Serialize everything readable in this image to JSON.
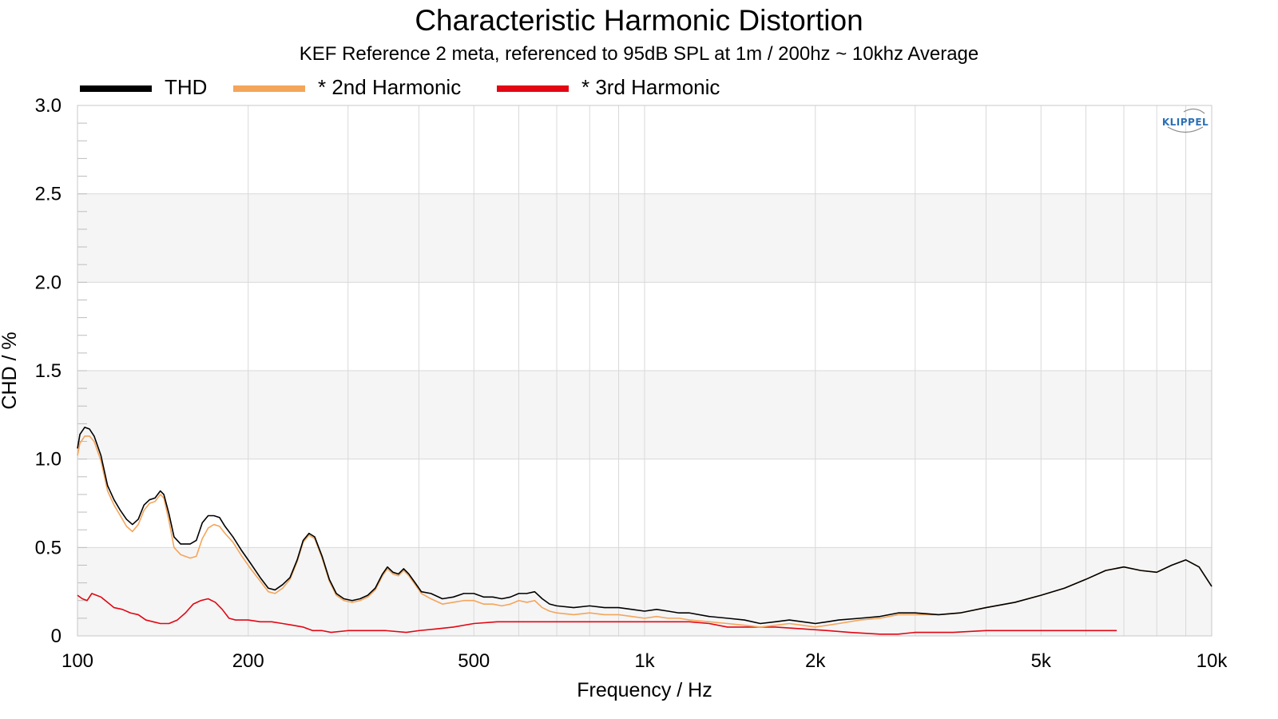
{
  "colors": {
    "thd": "#000000",
    "h2": "#f4a55a",
    "h3": "#e30613",
    "grid": "#d9d9d9",
    "band": "#f5f5f5",
    "brand": "#2b6fb5"
  },
  "brand_logo_text": "KLIPPEL",
  "chart_data": {
    "type": "line",
    "title": "Characteristic Harmonic Distortion",
    "subtitle": "KEF Reference 2 meta, referenced to 95dB SPL at 1m / 200hz ~ 10khz Average",
    "xlabel": "Frequency / Hz",
    "ylabel": "CHD / %",
    "xscale": "log",
    "xlim": [
      100,
      10000
    ],
    "ylim": [
      0,
      3.0
    ],
    "grid": true,
    "legend_position": "top-left",
    "x_ticks": [
      {
        "value": 100,
        "label": "100"
      },
      {
        "value": 200,
        "label": "200"
      },
      {
        "value": 500,
        "label": "500"
      },
      {
        "value": 1000,
        "label": "1k"
      },
      {
        "value": 2000,
        "label": "2k"
      },
      {
        "value": 5000,
        "label": "5k"
      },
      {
        "value": 10000,
        "label": "10k"
      }
    ],
    "y_ticks": [
      {
        "value": 0,
        "label": "0"
      },
      {
        "value": 0.5,
        "label": "0.5"
      },
      {
        "value": 1.0,
        "label": "1.0"
      },
      {
        "value": 1.5,
        "label": "1.5"
      },
      {
        "value": 2.0,
        "label": "2.0"
      },
      {
        "value": 2.5,
        "label": "2.5"
      },
      {
        "value": 3.0,
        "label": "3.0"
      }
    ],
    "series": [
      {
        "name": "THD",
        "color": "#000000",
        "points": [
          [
            100,
            1.06
          ],
          [
            101,
            1.14
          ],
          [
            103,
            1.18
          ],
          [
            105,
            1.17
          ],
          [
            107,
            1.13
          ],
          [
            110,
            1.02
          ],
          [
            113,
            0.85
          ],
          [
            116,
            0.77
          ],
          [
            119,
            0.71
          ],
          [
            122,
            0.66
          ],
          [
            125,
            0.63
          ],
          [
            128,
            0.66
          ],
          [
            131,
            0.74
          ],
          [
            134,
            0.77
          ],
          [
            137,
            0.78
          ],
          [
            140,
            0.82
          ],
          [
            142,
            0.8
          ],
          [
            145,
            0.69
          ],
          [
            148,
            0.56
          ],
          [
            152,
            0.52
          ],
          [
            158,
            0.52
          ],
          [
            162,
            0.54
          ],
          [
            166,
            0.64
          ],
          [
            170,
            0.68
          ],
          [
            174,
            0.68
          ],
          [
            178,
            0.67
          ],
          [
            182,
            0.62
          ],
          [
            188,
            0.56
          ],
          [
            195,
            0.48
          ],
          [
            202,
            0.41
          ],
          [
            210,
            0.33
          ],
          [
            217,
            0.27
          ],
          [
            223,
            0.26
          ],
          [
            230,
            0.29
          ],
          [
            237,
            0.33
          ],
          [
            244,
            0.43
          ],
          [
            250,
            0.54
          ],
          [
            256,
            0.58
          ],
          [
            262,
            0.56
          ],
          [
            270,
            0.45
          ],
          [
            278,
            0.32
          ],
          [
            286,
            0.24
          ],
          [
            295,
            0.21
          ],
          [
            305,
            0.2
          ],
          [
            315,
            0.21
          ],
          [
            325,
            0.23
          ],
          [
            335,
            0.27
          ],
          [
            345,
            0.35
          ],
          [
            352,
            0.39
          ],
          [
            360,
            0.36
          ],
          [
            368,
            0.35
          ],
          [
            376,
            0.38
          ],
          [
            384,
            0.35
          ],
          [
            394,
            0.3
          ],
          [
            404,
            0.25
          ],
          [
            420,
            0.24
          ],
          [
            440,
            0.21
          ],
          [
            460,
            0.22
          ],
          [
            480,
            0.24
          ],
          [
            500,
            0.24
          ],
          [
            520,
            0.22
          ],
          [
            540,
            0.22
          ],
          [
            560,
            0.21
          ],
          [
            580,
            0.22
          ],
          [
            600,
            0.24
          ],
          [
            620,
            0.24
          ],
          [
            640,
            0.25
          ],
          [
            660,
            0.21
          ],
          [
            680,
            0.18
          ],
          [
            700,
            0.17
          ],
          [
            750,
            0.16
          ],
          [
            800,
            0.17
          ],
          [
            850,
            0.16
          ],
          [
            900,
            0.16
          ],
          [
            950,
            0.15
          ],
          [
            1000,
            0.14
          ],
          [
            1050,
            0.15
          ],
          [
            1100,
            0.14
          ],
          [
            1150,
            0.13
          ],
          [
            1200,
            0.13
          ],
          [
            1300,
            0.11
          ],
          [
            1400,
            0.1
          ],
          [
            1500,
            0.09
          ],
          [
            1600,
            0.07
          ],
          [
            1700,
            0.08
          ],
          [
            1800,
            0.09
          ],
          [
            1900,
            0.08
          ],
          [
            2000,
            0.07
          ],
          [
            2100,
            0.08
          ],
          [
            2200,
            0.09
          ],
          [
            2400,
            0.1
          ],
          [
            2600,
            0.11
          ],
          [
            2800,
            0.13
          ],
          [
            3000,
            0.13
          ],
          [
            3300,
            0.12
          ],
          [
            3600,
            0.13
          ],
          [
            4000,
            0.16
          ],
          [
            4500,
            0.19
          ],
          [
            5000,
            0.23
          ],
          [
            5500,
            0.27
          ],
          [
            6000,
            0.32
          ],
          [
            6500,
            0.37
          ],
          [
            7000,
            0.39
          ],
          [
            7500,
            0.37
          ],
          [
            8000,
            0.36
          ],
          [
            8500,
            0.4
          ],
          [
            9000,
            0.43
          ],
          [
            9500,
            0.39
          ],
          [
            10000,
            0.28
          ]
        ]
      },
      {
        "name": "* 2nd Harmonic",
        "color": "#f4a55a",
        "points": [
          [
            100,
            1.02
          ],
          [
            101,
            1.09
          ],
          [
            103,
            1.13
          ],
          [
            105,
            1.13
          ],
          [
            107,
            1.1
          ],
          [
            110,
            0.99
          ],
          [
            113,
            0.82
          ],
          [
            116,
            0.74
          ],
          [
            119,
            0.68
          ],
          [
            122,
            0.62
          ],
          [
            125,
            0.59
          ],
          [
            128,
            0.63
          ],
          [
            131,
            0.71
          ],
          [
            134,
            0.75
          ],
          [
            137,
            0.76
          ],
          [
            140,
            0.8
          ],
          [
            142,
            0.78
          ],
          [
            145,
            0.65
          ],
          [
            148,
            0.5
          ],
          [
            152,
            0.46
          ],
          [
            158,
            0.44
          ],
          [
            162,
            0.45
          ],
          [
            166,
            0.55
          ],
          [
            170,
            0.61
          ],
          [
            174,
            0.63
          ],
          [
            178,
            0.62
          ],
          [
            182,
            0.58
          ],
          [
            188,
            0.53
          ],
          [
            195,
            0.45
          ],
          [
            202,
            0.38
          ],
          [
            210,
            0.31
          ],
          [
            217,
            0.25
          ],
          [
            223,
            0.24
          ],
          [
            230,
            0.27
          ],
          [
            237,
            0.32
          ],
          [
            244,
            0.42
          ],
          [
            250,
            0.53
          ],
          [
            256,
            0.57
          ],
          [
            262,
            0.55
          ],
          [
            270,
            0.44
          ],
          [
            278,
            0.31
          ],
          [
            286,
            0.23
          ],
          [
            295,
            0.2
          ],
          [
            305,
            0.19
          ],
          [
            315,
            0.2
          ],
          [
            325,
            0.22
          ],
          [
            335,
            0.26
          ],
          [
            345,
            0.34
          ],
          [
            352,
            0.38
          ],
          [
            360,
            0.35
          ],
          [
            368,
            0.34
          ],
          [
            376,
            0.37
          ],
          [
            384,
            0.34
          ],
          [
            394,
            0.29
          ],
          [
            404,
            0.24
          ],
          [
            420,
            0.21
          ],
          [
            440,
            0.18
          ],
          [
            460,
            0.19
          ],
          [
            480,
            0.2
          ],
          [
            500,
            0.2
          ],
          [
            520,
            0.18
          ],
          [
            540,
            0.18
          ],
          [
            560,
            0.17
          ],
          [
            580,
            0.18
          ],
          [
            600,
            0.2
          ],
          [
            620,
            0.19
          ],
          [
            640,
            0.2
          ],
          [
            660,
            0.16
          ],
          [
            680,
            0.14
          ],
          [
            700,
            0.13
          ],
          [
            750,
            0.12
          ],
          [
            800,
            0.13
          ],
          [
            850,
            0.12
          ],
          [
            900,
            0.12
          ],
          [
            950,
            0.11
          ],
          [
            1000,
            0.1
          ],
          [
            1050,
            0.11
          ],
          [
            1100,
            0.1
          ],
          [
            1150,
            0.1
          ],
          [
            1200,
            0.09
          ],
          [
            1300,
            0.08
          ],
          [
            1400,
            0.07
          ],
          [
            1500,
            0.06
          ],
          [
            1600,
            0.05
          ],
          [
            1700,
            0.06
          ],
          [
            1800,
            0.07
          ],
          [
            1900,
            0.06
          ],
          [
            2000,
            0.05
          ],
          [
            2100,
            0.06
          ],
          [
            2200,
            0.07
          ],
          [
            2400,
            0.09
          ],
          [
            2600,
            0.1
          ],
          [
            2800,
            0.12
          ],
          [
            3000,
            0.12
          ],
          [
            3300,
            0.12
          ],
          [
            3600,
            0.13
          ],
          [
            4000,
            0.16
          ],
          [
            4500,
            0.19
          ],
          [
            5000,
            0.23
          ],
          [
            5500,
            0.27
          ],
          [
            6000,
            0.32
          ],
          [
            6500,
            0.37
          ],
          [
            7000,
            0.39
          ],
          [
            7500,
            0.37
          ],
          [
            8000,
            0.36
          ],
          [
            8500,
            0.4
          ],
          [
            9000,
            0.43
          ],
          [
            9500,
            0.39
          ],
          [
            10000,
            0.28
          ]
        ]
      },
      {
        "name": "* 3rd Harmonic",
        "color": "#e30613",
        "points": [
          [
            100,
            0.23
          ],
          [
            102,
            0.21
          ],
          [
            104,
            0.2
          ],
          [
            106,
            0.24
          ],
          [
            108,
            0.23
          ],
          [
            110,
            0.22
          ],
          [
            113,
            0.19
          ],
          [
            116,
            0.16
          ],
          [
            120,
            0.15
          ],
          [
            124,
            0.13
          ],
          [
            128,
            0.12
          ],
          [
            132,
            0.09
          ],
          [
            136,
            0.08
          ],
          [
            140,
            0.07
          ],
          [
            145,
            0.07
          ],
          [
            150,
            0.09
          ],
          [
            155,
            0.13
          ],
          [
            160,
            0.18
          ],
          [
            165,
            0.2
          ],
          [
            170,
            0.21
          ],
          [
            175,
            0.19
          ],
          [
            180,
            0.15
          ],
          [
            185,
            0.1
          ],
          [
            190,
            0.09
          ],
          [
            200,
            0.09
          ],
          [
            210,
            0.08
          ],
          [
            220,
            0.08
          ],
          [
            230,
            0.07
          ],
          [
            240,
            0.06
          ],
          [
            250,
            0.05
          ],
          [
            260,
            0.03
          ],
          [
            270,
            0.03
          ],
          [
            280,
            0.02
          ],
          [
            300,
            0.03
          ],
          [
            320,
            0.03
          ],
          [
            350,
            0.03
          ],
          [
            380,
            0.02
          ],
          [
            400,
            0.03
          ],
          [
            430,
            0.04
          ],
          [
            460,
            0.05
          ],
          [
            500,
            0.07
          ],
          [
            550,
            0.08
          ],
          [
            600,
            0.08
          ],
          [
            650,
            0.08
          ],
          [
            700,
            0.08
          ],
          [
            800,
            0.08
          ],
          [
            900,
            0.08
          ],
          [
            1000,
            0.08
          ],
          [
            1100,
            0.08
          ],
          [
            1200,
            0.08
          ],
          [
            1300,
            0.07
          ],
          [
            1400,
            0.05
          ],
          [
            1500,
            0.05
          ],
          [
            1700,
            0.05
          ],
          [
            1900,
            0.04
          ],
          [
            2100,
            0.03
          ],
          [
            2300,
            0.02
          ],
          [
            2600,
            0.01
          ],
          [
            2800,
            0.01
          ],
          [
            3000,
            0.02
          ],
          [
            3500,
            0.02
          ],
          [
            4000,
            0.03
          ],
          [
            4500,
            0.03
          ],
          [
            5000,
            0.03
          ],
          [
            5500,
            0.03
          ],
          [
            6000,
            0.03
          ],
          [
            6500,
            0.03
          ],
          [
            6800,
            0.03
          ]
        ]
      }
    ]
  }
}
